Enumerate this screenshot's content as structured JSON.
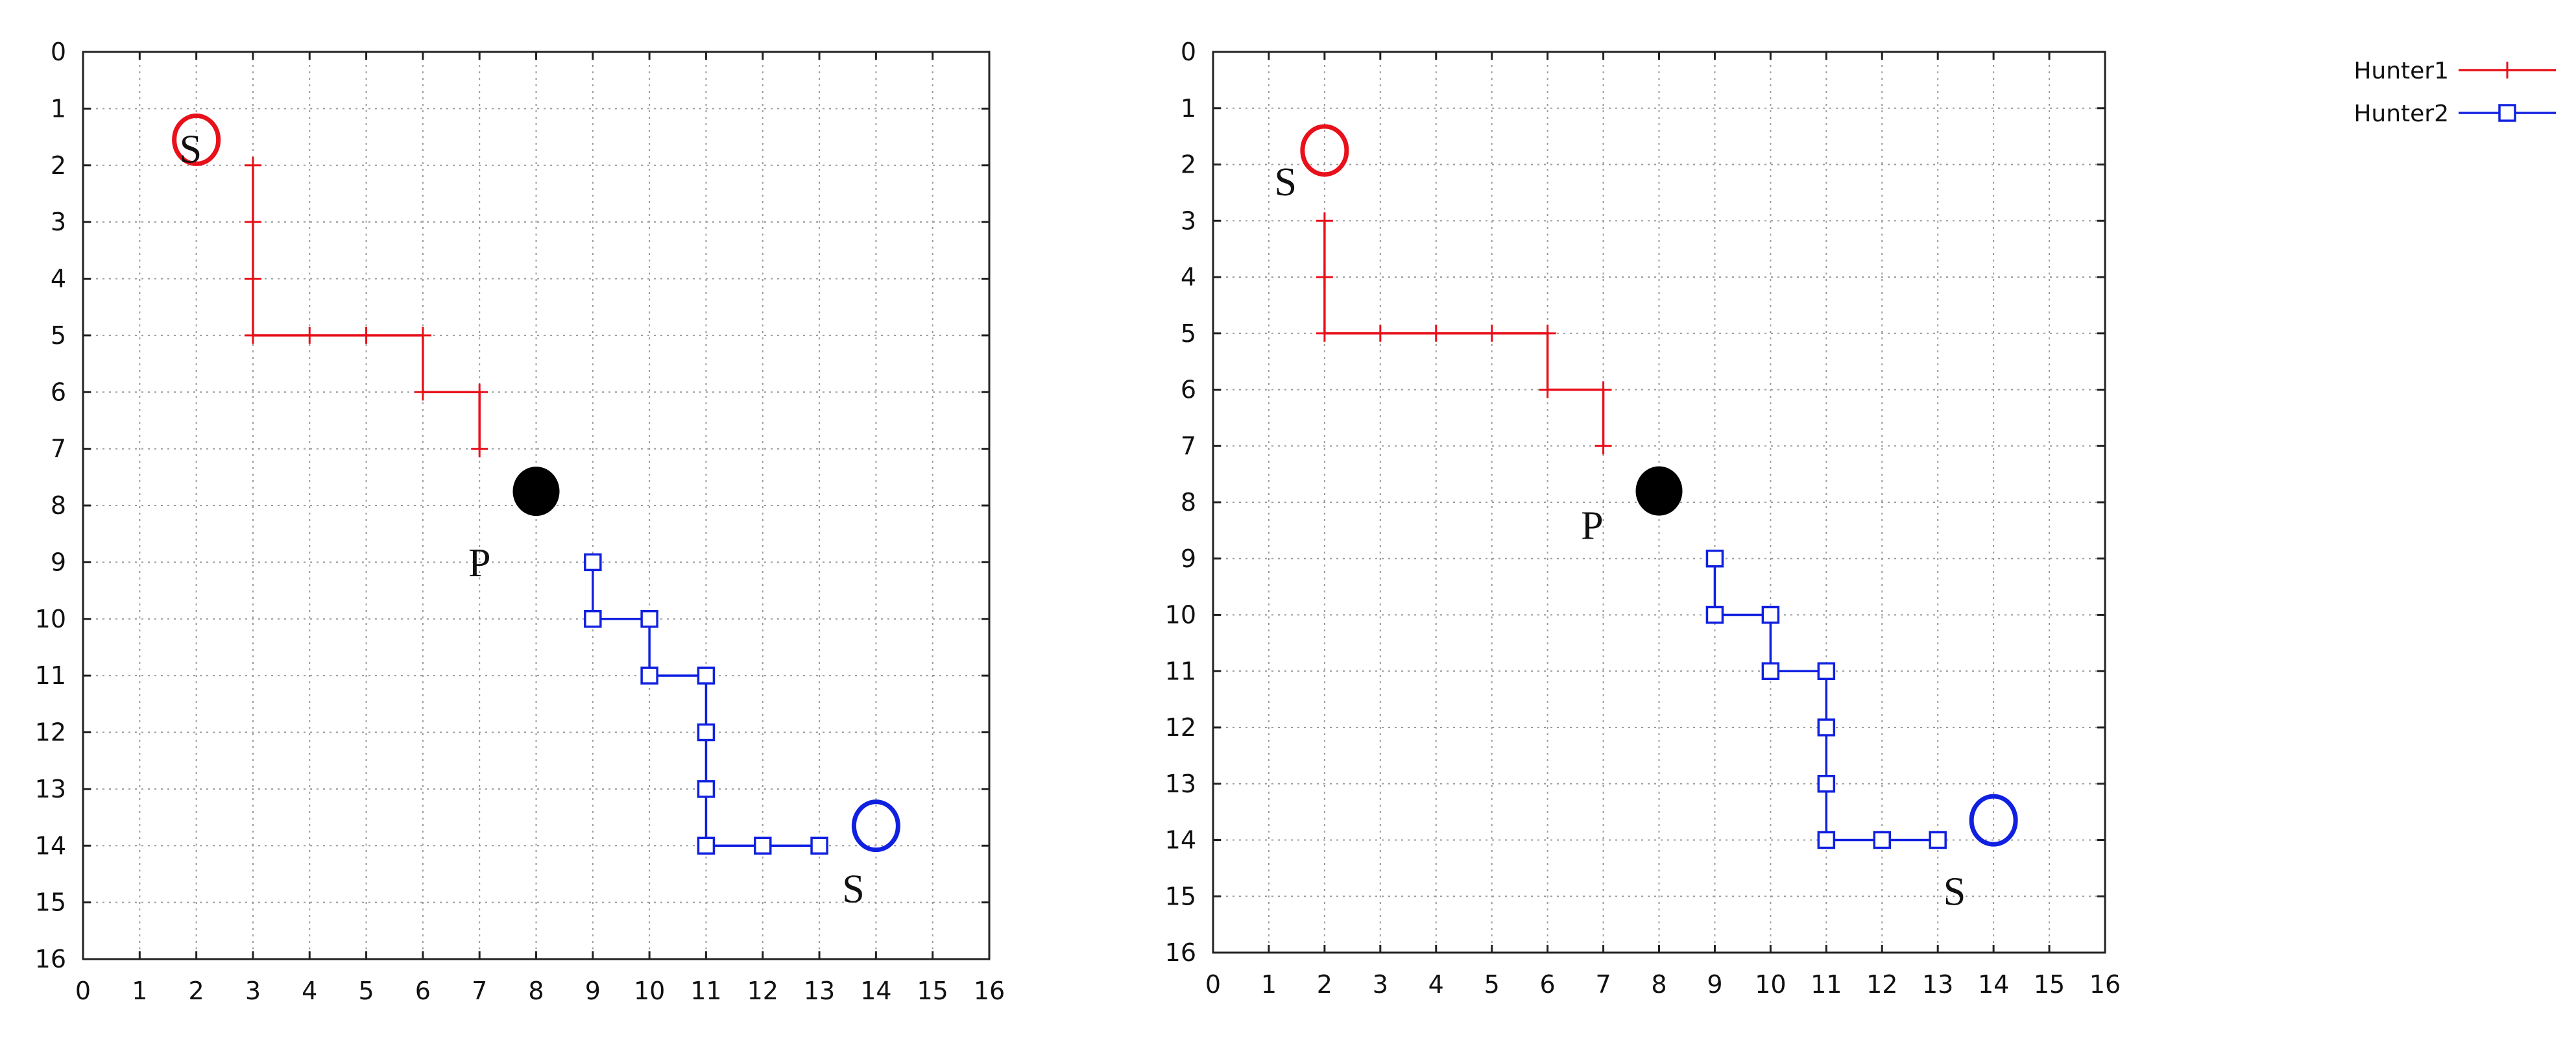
{
  "colors": {
    "hunter1": "#e8101a",
    "hunter2": "#1020e0",
    "prey": "#000000"
  },
  "legend": [
    {
      "name": "Hunter1",
      "marker": "plus",
      "color": "#e8101a"
    },
    {
      "name": "Hunter2",
      "marker": "square",
      "color": "#1020e0"
    }
  ],
  "chart_data": [
    {
      "type": "line",
      "title": "",
      "xlabel": "",
      "ylabel": "",
      "xlim": [
        0,
        16
      ],
      "ylim": [
        0,
        16
      ],
      "y_inverted": true,
      "grid": true,
      "x_ticks": [
        "0",
        "1",
        "2",
        "3",
        "4",
        "5",
        "6",
        "7",
        "8",
        "9",
        "10",
        "11",
        "12",
        "13",
        "14",
        "15",
        "16"
      ],
      "y_ticks": [
        "0",
        "1",
        "2",
        "3",
        "4",
        "5",
        "6",
        "7",
        "8",
        "9",
        "10",
        "11",
        "12",
        "13",
        "14",
        "15",
        "16"
      ],
      "series": [
        {
          "name": "Hunter1",
          "marker": "plus",
          "points": [
            [
              3,
              2
            ],
            [
              3,
              3
            ],
            [
              3,
              4
            ],
            [
              3,
              5
            ],
            [
              4,
              5
            ],
            [
              5,
              5
            ],
            [
              6,
              5
            ],
            [
              6,
              6
            ],
            [
              7,
              6
            ],
            [
              7,
              7
            ]
          ]
        },
        {
          "name": "Hunter2",
          "marker": "square",
          "points": [
            [
              9,
              9
            ],
            [
              9,
              10
            ],
            [
              10,
              10
            ],
            [
              10,
              11
            ],
            [
              11,
              11
            ],
            [
              11,
              12
            ],
            [
              11,
              13
            ],
            [
              11,
              14
            ],
            [
              12,
              14
            ],
            [
              13,
              14
            ]
          ]
        }
      ],
      "annotations": [
        {
          "shape": "circle",
          "x": 2,
          "y": 1.55,
          "color": "#e8101a",
          "label": "S",
          "label_x": 1.9,
          "label_y": 1.95
        },
        {
          "shape": "circle",
          "x": 14,
          "y": 13.65,
          "color": "#1020e0",
          "label": "S",
          "label_x": 13.6,
          "label_y": 15.0
        },
        {
          "shape": "dot",
          "x": 8,
          "y": 7.75,
          "color": "#000000",
          "label": "P",
          "label_x": 7.0,
          "label_y": 9.25
        }
      ]
    },
    {
      "type": "line",
      "title": "",
      "xlabel": "",
      "ylabel": "",
      "xlim": [
        0,
        16
      ],
      "ylim": [
        0,
        16
      ],
      "y_inverted": true,
      "grid": true,
      "x_ticks": [
        "0",
        "1",
        "2",
        "3",
        "4",
        "5",
        "6",
        "7",
        "8",
        "9",
        "10",
        "11",
        "12",
        "13",
        "14",
        "15",
        "16"
      ],
      "y_ticks": [
        "0",
        "1",
        "2",
        "3",
        "4",
        "5",
        "6",
        "7",
        "8",
        "9",
        "10",
        "11",
        "12",
        "13",
        "14",
        "15",
        "16"
      ],
      "series": [
        {
          "name": "Hunter1",
          "marker": "plus",
          "points": [
            [
              2,
              3
            ],
            [
              2,
              4
            ],
            [
              2,
              5
            ],
            [
              3,
              5
            ],
            [
              4,
              5
            ],
            [
              5,
              5
            ],
            [
              6,
              5
            ],
            [
              6,
              6
            ],
            [
              7,
              6
            ],
            [
              7,
              7
            ]
          ]
        },
        {
          "name": "Hunter2",
          "marker": "square",
          "points": [
            [
              9,
              9
            ],
            [
              9,
              10
            ],
            [
              10,
              10
            ],
            [
              10,
              11
            ],
            [
              11,
              11
            ],
            [
              11,
              12
            ],
            [
              11,
              13
            ],
            [
              11,
              14
            ],
            [
              12,
              14
            ],
            [
              13,
              14
            ]
          ]
        }
      ],
      "annotations": [
        {
          "shape": "circle",
          "x": 2,
          "y": 1.75,
          "color": "#e8101a",
          "label": "S",
          "label_x": 1.3,
          "label_y": 2.55
        },
        {
          "shape": "circle",
          "x": 14,
          "y": 13.65,
          "color": "#1020e0",
          "label": "S",
          "label_x": 13.3,
          "label_y": 15.15
        },
        {
          "shape": "dot",
          "x": 8,
          "y": 7.8,
          "color": "#000000",
          "label": "P",
          "label_x": 6.8,
          "label_y": 8.65
        }
      ]
    }
  ]
}
